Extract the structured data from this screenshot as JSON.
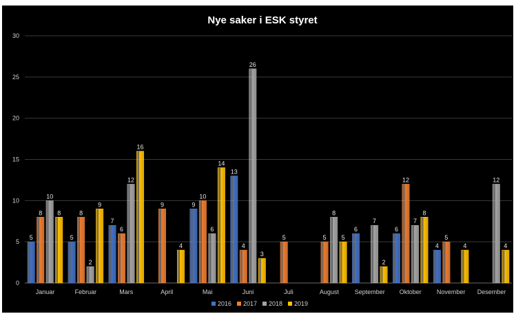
{
  "chart_data": {
    "type": "bar",
    "title": "Nye saker i ESK styret",
    "categories": [
      "Januar",
      "Februar",
      "Mars",
      "April",
      "Mai",
      "Juni",
      "Juli",
      "August",
      "September",
      "Oktober",
      "November",
      "Desember"
    ],
    "series": [
      {
        "name": "2016",
        "color": "#4472c4",
        "values": [
          5,
          5,
          7,
          0,
          9,
          13,
          0,
          0,
          6,
          6,
          4,
          0
        ]
      },
      {
        "name": "2017",
        "color": "#ed7d31",
        "values": [
          8,
          8,
          6,
          9,
          10,
          4,
          5,
          5,
          0,
          12,
          5,
          0
        ]
      },
      {
        "name": "2018",
        "color": "#a5a5a5",
        "values": [
          10,
          2,
          12,
          0,
          6,
          26,
          0,
          8,
          7,
          7,
          0,
          12
        ]
      },
      {
        "name": "2019",
        "color": "#ffc000",
        "values": [
          8,
          9,
          16,
          4,
          14,
          3,
          0,
          5,
          2,
          8,
          4,
          4
        ]
      }
    ],
    "ylim": [
      0,
      30
    ],
    "yticks": [
      0,
      5,
      10,
      15,
      20,
      25,
      30
    ],
    "grid": true,
    "legend": "bottom",
    "data_labels": true
  }
}
